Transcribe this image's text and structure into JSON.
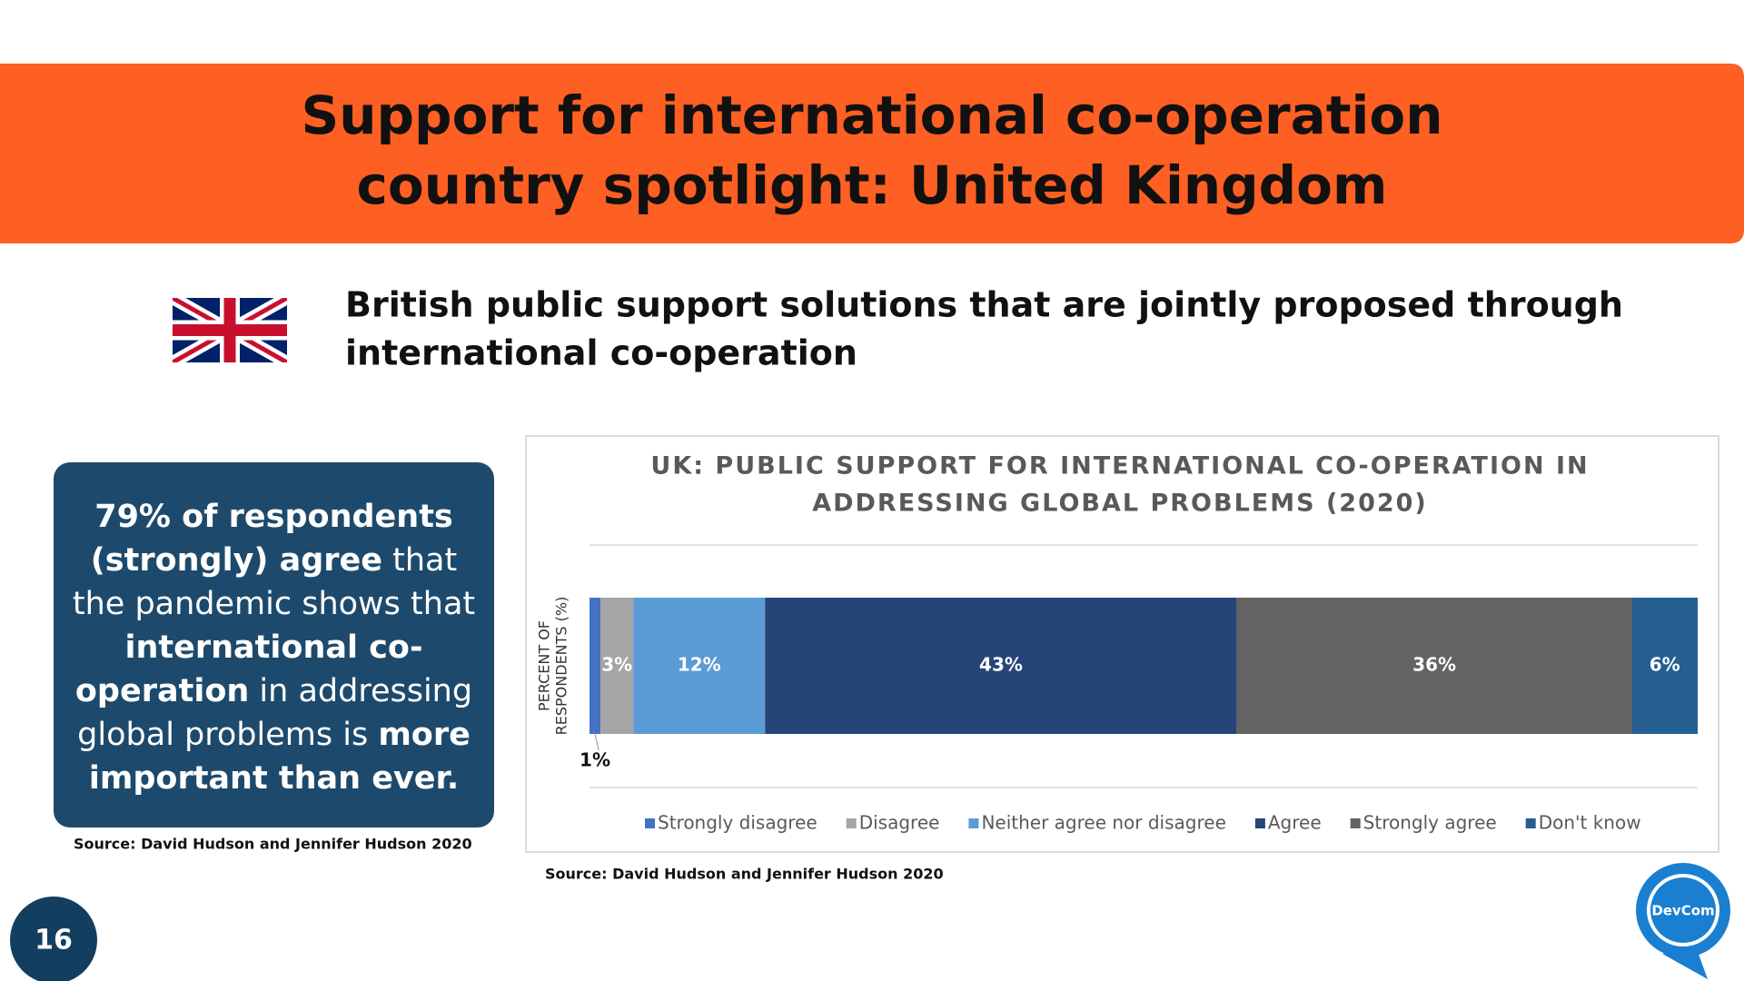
{
  "header": {
    "title_lines": [
      "Support for international co-operation",
      "country spotlight: United Kingdom"
    ]
  },
  "subtitle_lines": [
    "British public support solutions that are jointly proposed through",
    "international co-operation"
  ],
  "callout": {
    "segments": [
      {
        "text": "79% of respondents (strongly) agree",
        "bold": true
      },
      {
        "text": " that the pandemic shows that ",
        "bold": false
      },
      {
        "text": "international co-operation",
        "bold": true
      },
      {
        "text": " in addressing global problems is ",
        "bold": false
      },
      {
        "text": "more important than ever.",
        "bold": true
      }
    ]
  },
  "callout_source": "Source: David Hudson and Jennifer Hudson 2020",
  "chart_data": {
    "type": "stacked_barh",
    "title_lines": [
      "UK: PUBLIC SUPPORT FOR INTERNATIONAL CO-OPERATION IN",
      "ADDRESSING GLOBAL PROBLEMS (2020)"
    ],
    "y_label_lines": [
      "PERCENT OF",
      "RESPONDENTS (%)"
    ],
    "series": [
      {
        "name": "Strongly disagree",
        "color": "#4472c4",
        "values": [
          1
        ],
        "value_labels": [
          "1%"
        ]
      },
      {
        "name": "Disagree",
        "color": "#a5a5a5",
        "values": [
          3
        ],
        "value_labels": [
          "3%"
        ]
      },
      {
        "name": "Neither agree nor disagree",
        "color": "#5b9bd5",
        "values": [
          12
        ],
        "value_labels": [
          "12%"
        ]
      },
      {
        "name": "Agree",
        "color": "#264478",
        "values": [
          43
        ],
        "value_labels": [
          "43%"
        ]
      },
      {
        "name": "Strongly agree",
        "color": "#636363",
        "values": [
          36
        ],
        "value_labels": [
          "36%"
        ]
      },
      {
        "name": "Don't know",
        "color": "#255e91",
        "values": [
          6
        ],
        "value_labels": [
          "6%"
        ]
      }
    ],
    "legend": "bottom",
    "grid": true
  },
  "chart_source": "Source: David Hudson and Jennifer Hudson 2020",
  "page_number": "16",
  "logo": "DevCom"
}
